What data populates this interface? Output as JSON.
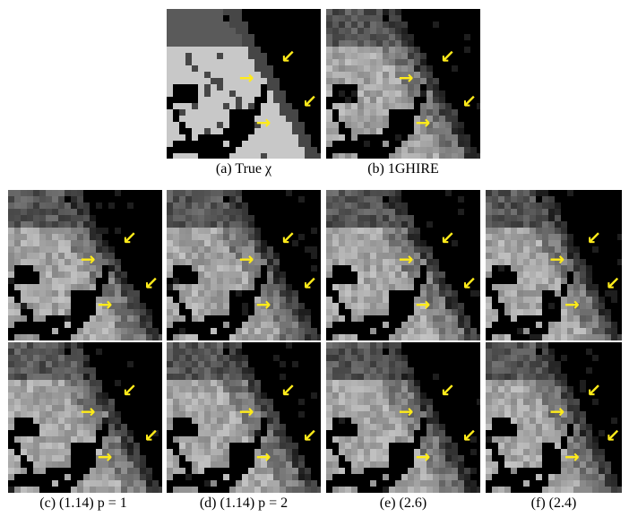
{
  "figure": {
    "top_row": [
      {
        "id": "a",
        "caption": "(a)  True χ",
        "style": "truth"
      },
      {
        "id": "b",
        "caption": "(b)  1GHIRE",
        "style": "recon"
      }
    ],
    "columns": [
      {
        "id": "c",
        "caption": "(c)  (1.14) p = 1"
      },
      {
        "id": "d",
        "caption": "(d)  (1.14) p = 2"
      },
      {
        "id": "e",
        "caption": "(e)  (2.6)"
      },
      {
        "id": "f",
        "caption": "(f)  (2.4)"
      }
    ],
    "arrow_color": "#ffeb1a",
    "arrow_glyphs": {
      "right": "→",
      "down_left": "↙"
    }
  }
}
